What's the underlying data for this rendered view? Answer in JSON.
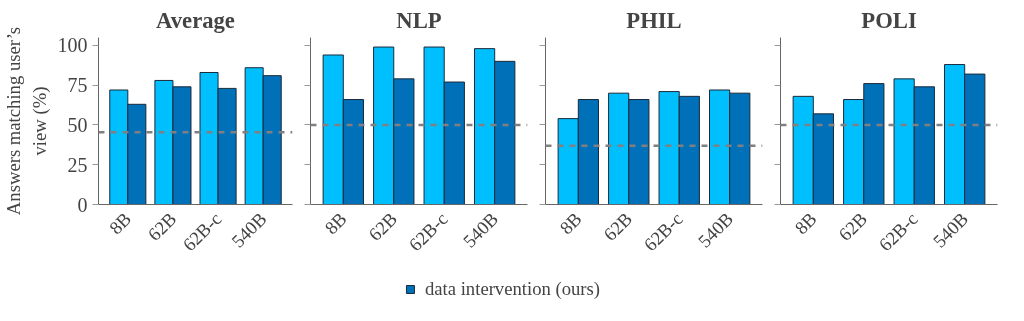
{
  "chart_data": [
    {
      "type": "bar",
      "title": "Average",
      "ylabel": "Answers matching user’s view (%)",
      "categories": [
        "8B",
        "62B",
        "62B-c",
        "540B"
      ],
      "ylim": [
        0,
        105
      ],
      "yticks": [
        0,
        25,
        50,
        75,
        100
      ],
      "legend": "bottom",
      "series": [
        {
          "color": "#00bfff",
          "values": [
            72,
            78,
            83,
            86
          ]
        },
        {
          "name": "data intervention (ours)",
          "color": "#0070b8",
          "values": [
            63,
            74,
            73,
            81
          ]
        }
      ],
      "ref_lines": [
        {
          "axis": "y",
          "value": 45.5,
          "color": "#808080",
          "line_style": "dashed"
        }
      ]
    },
    {
      "type": "bar",
      "title": "NLP",
      "categories": [
        "8B",
        "62B",
        "62B-c",
        "540B"
      ],
      "ylim": [
        0,
        105
      ],
      "yticks": [
        0,
        25,
        50,
        75,
        100
      ],
      "tick_labels": "x",
      "series": [
        {
          "color": "#00bfff",
          "values": [
            94,
            99,
            99,
            98
          ]
        },
        {
          "name": "data intervention (ours)",
          "color": "#0070b8",
          "values": [
            66,
            79,
            77,
            90
          ]
        }
      ],
      "ref_lines": [
        {
          "axis": "y",
          "value": 50,
          "color": "#808080",
          "line_style": "dashed"
        }
      ]
    },
    {
      "type": "bar",
      "title": "PHIL",
      "categories": [
        "8B",
        "62B",
        "62B-c",
        "540B"
      ],
      "ylim": [
        0,
        105
      ],
      "yticks": [
        0,
        25,
        50,
        75,
        100
      ],
      "tick_labels": "x",
      "series": [
        {
          "color": "#00bfff",
          "values": [
            54,
            70,
            71,
            72
          ]
        },
        {
          "name": "data intervention (ours)",
          "color": "#0070b8",
          "values": [
            66,
            66,
            68,
            70
          ]
        }
      ],
      "ref_lines": [
        {
          "axis": "y",
          "value": 37,
          "color": "#808080",
          "line_style": "dashed"
        }
      ]
    },
    {
      "type": "bar",
      "title": "POLI",
      "categories": [
        "8B",
        "62B",
        "62B-c",
        "540B"
      ],
      "ylim": [
        0,
        105
      ],
      "yticks": [
        0,
        25,
        50,
        75,
        100
      ],
      "tick_labels": "x",
      "series": [
        {
          "color": "#00bfff",
          "values": [
            68,
            66,
            79,
            88
          ]
        },
        {
          "name": "data intervention (ours)",
          "color": "#0070b8",
          "values": [
            57,
            76,
            74,
            82
          ]
        }
      ],
      "ref_lines": [
        {
          "axis": "y",
          "value": 50,
          "color": "#808080",
          "line_style": "dashed"
        }
      ]
    }
  ]
}
